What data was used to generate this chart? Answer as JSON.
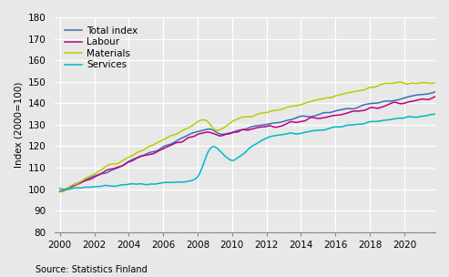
{
  "title": "",
  "ylabel": "Index (2000=100)",
  "source": "Source: Statistics Finland",
  "ylim": [
    80,
    180
  ],
  "yticks": [
    80,
    90,
    100,
    110,
    120,
    130,
    140,
    150,
    160,
    170,
    180
  ],
  "xlim": [
    1999.7,
    2021.8
  ],
  "xticks": [
    2000,
    2002,
    2004,
    2006,
    2008,
    2010,
    2012,
    2014,
    2016,
    2018,
    2020
  ],
  "colors": {
    "total": "#3d6faf",
    "labour": "#c0007f",
    "materials": "#b8cc00",
    "services": "#00b8c8"
  },
  "legend_labels": [
    "Total index",
    "Labour",
    "Materials",
    "Services"
  ],
  "background_color": "#e8e8e8",
  "grid_color": "#ffffff",
  "linewidth": 1.1
}
